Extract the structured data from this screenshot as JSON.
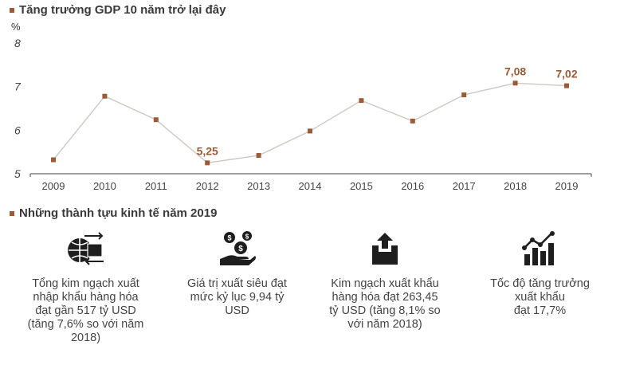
{
  "chart_title": "Tăng trưởng GDP 10 năm trở lại đây",
  "chart_data": {
    "type": "line",
    "title": "Tăng trưởng GDP 10 năm trở lại đây",
    "ylabel": "%",
    "xlabel": "",
    "categories": [
      "2009",
      "2010",
      "2011",
      "2012",
      "2013",
      "2014",
      "2015",
      "2016",
      "2017",
      "2018",
      "2019"
    ],
    "values": [
      5.32,
      6.78,
      6.24,
      5.25,
      5.42,
      5.98,
      6.68,
      6.21,
      6.81,
      7.08,
      7.02
    ],
    "ylim": [
      5,
      8
    ],
    "yticks": [
      "5",
      "6",
      "7",
      "8"
    ],
    "annotations": [
      {
        "index": 3,
        "label": "5,25"
      },
      {
        "index": 9,
        "label": "7,08"
      },
      {
        "index": 10,
        "label": "7,02"
      }
    ],
    "grid": false,
    "line_color": "#cfc8c2",
    "marker_color": "#9c5a36",
    "label_color": "#9c5a36"
  },
  "achievements_title": "Những thành tựu kinh tế năm 2019",
  "achievements": [
    {
      "icon": "import-export-icon",
      "lines": [
        "Tổng kim ngạch xuất",
        "nhập khẩu hàng hóa",
        "đạt gần 517 tỷ USD",
        "(tăng 7,6% so với năm",
        "2018)"
      ]
    },
    {
      "icon": "hand-money-icon",
      "lines": [
        "Giá trị xuất siêu đạt",
        "mức kỷ lục 9,94 tỷ",
        "USD"
      ]
    },
    {
      "icon": "export-box-icon",
      "lines": [
        "Kim ngạch xuất khẩu",
        "hàng hóa đạt 263,45",
        "tỷ USD (tăng 8,1% so",
        "với năm 2018)"
      ]
    },
    {
      "icon": "growth-chart-icon",
      "lines": [
        "Tốc độ tăng trưởng",
        "xuất khẩu",
        "đạt 17,7%"
      ]
    }
  ],
  "colors": {
    "accent": "#9c5a36",
    "icon": "#1e1e1e",
    "text": "#444444"
  }
}
